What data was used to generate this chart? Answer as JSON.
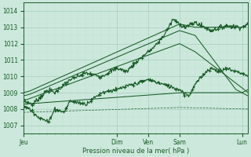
{
  "title": "",
  "xlabel": "Pression niveau de la mer( hPa )",
  "ylim": [
    1006.5,
    1014.5
  ],
  "yticks": [
    1007,
    1008,
    1009,
    1010,
    1011,
    1012,
    1013,
    1014
  ],
  "day_labels": [
    "Jeu",
    "Dim",
    "Ven",
    "Sam",
    "Lun"
  ],
  "day_positions": [
    0,
    3,
    4,
    5,
    7
  ],
  "background_color": "#cce8dc",
  "grid_color_major": "#a8cfc0",
  "grid_color_minor": "#bcddd0",
  "line_color": "#1a5c28",
  "total_days": 7.2
}
